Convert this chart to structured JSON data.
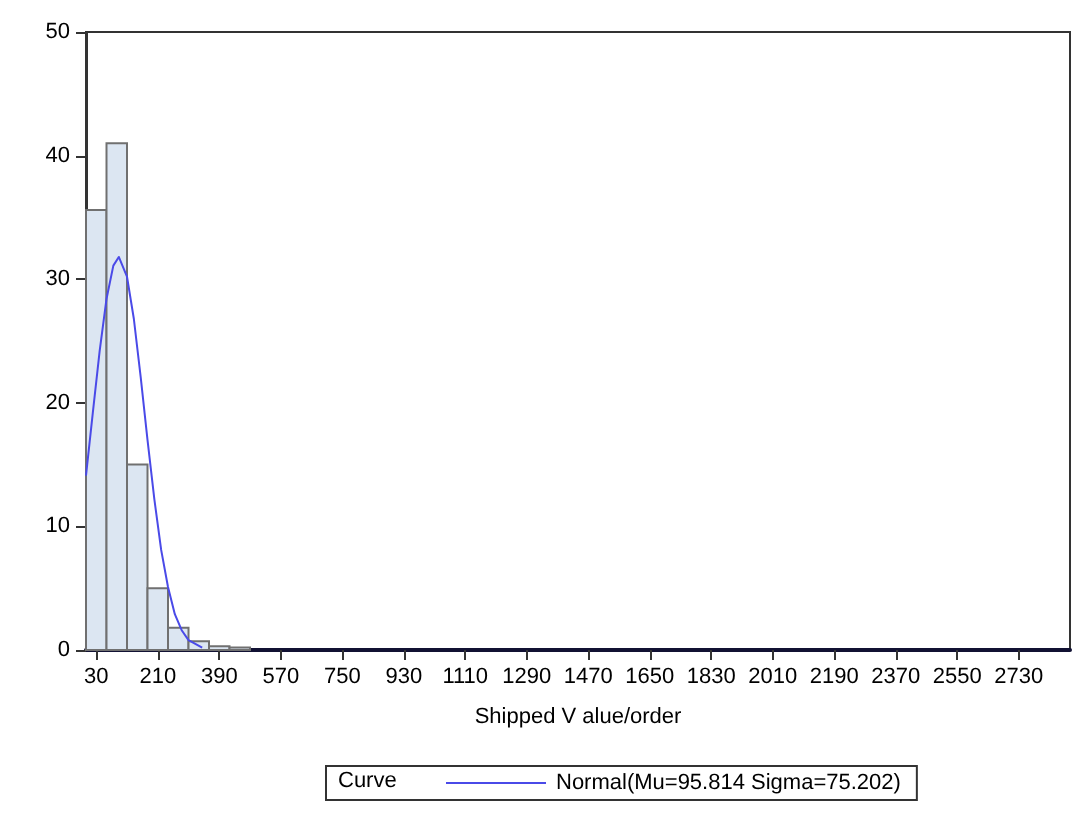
{
  "chart_data": {
    "type": "histogram",
    "xlabel": "Shipped V alue/order",
    "legend_title": "Curve",
    "legend": "bottom",
    "color": "#dce6f2",
    "bins": [
      0,
      60,
      120,
      180,
      240,
      300,
      360,
      420,
      480
    ],
    "values": [
      35.6,
      41,
      15,
      5,
      1.8,
      0.7,
      0.3,
      0.2
    ],
    "series": [
      {
        "type": "line",
        "name": "Normal(Mu=95.814 Sigma=75.202)",
        "color": "#4a4ae8",
        "x": [
          0,
          20,
          40,
          60,
          80,
          96,
          120,
          140,
          160,
          180,
          200,
          220,
          240,
          260,
          280,
          300,
          340
        ],
        "values": [
          14.1,
          19.2,
          24.2,
          28.4,
          31.1,
          31.8,
          30.2,
          26.8,
          22.1,
          17.0,
          12.2,
          8.1,
          5.1,
          2.9,
          1.6,
          0.8,
          0.2
        ]
      }
    ],
    "xlim": [
      0,
      2880
    ],
    "xticks": [
      30,
      210,
      390,
      570,
      750,
      930,
      1110,
      1290,
      1470,
      1650,
      1830,
      2010,
      2190,
      2370,
      2550,
      2730
    ],
    "ylim": [
      0,
      50
    ],
    "yticks": [
      0,
      10,
      20,
      30,
      40,
      50
    ],
    "marker": "none"
  }
}
